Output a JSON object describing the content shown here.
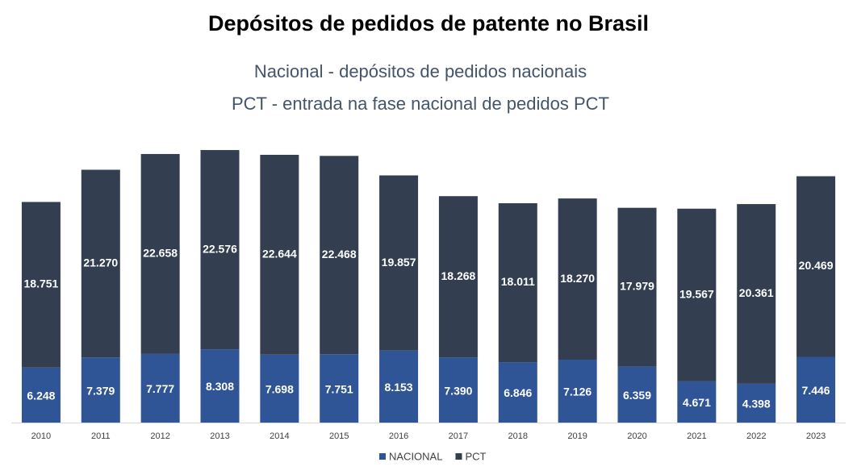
{
  "chart_data": {
    "type": "stacked_bar",
    "title": "Depósitos de pedidos de patente no Brasil",
    "subtitle": [
      "Nacional - depósitos de pedidos nacionais",
      "PCT - entrada na fase nacional de pedidos PCT"
    ],
    "categories": [
      "2010",
      "2011",
      "2012",
      "2013",
      "2014",
      "2015",
      "2016",
      "2017",
      "2018",
      "2019",
      "2020",
      "2021",
      "2022",
      "2023"
    ],
    "series": [
      {
        "name": "NACIONAL",
        "color": "#2f5597",
        "values": [
          6248,
          7379,
          7777,
          8308,
          7698,
          7751,
          8153,
          7390,
          6846,
          7126,
          6359,
          4671,
          4398,
          7446
        ],
        "value_labels": [
          "6.248",
          "7.379",
          "7.777",
          "8.308",
          "7.698",
          "7.751",
          "8.153",
          "7.390",
          "6.846",
          "7.126",
          "6.359",
          "4.671",
          "4.398",
          "7.446"
        ]
      },
      {
        "name": "PCT",
        "color": "#333f50",
        "values": [
          18751,
          21270,
          22658,
          22576,
          22644,
          22468,
          19857,
          18268,
          18011,
          18270,
          17979,
          19567,
          20361,
          20469
        ],
        "value_labels": [
          "18.751",
          "21.270",
          "22.658",
          "22.576",
          "22.644",
          "22.468",
          "19.857",
          "18.268",
          "18.011",
          "18.270",
          "17.979",
          "19.567",
          "20.361",
          "20.469"
        ]
      }
    ],
    "ylim": [
      0,
      35000
    ],
    "legend": "bottom"
  }
}
